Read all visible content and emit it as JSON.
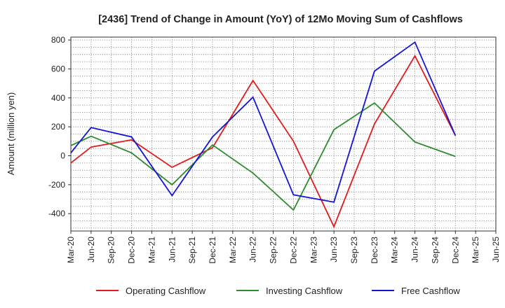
{
  "chart_data": {
    "type": "line",
    "title": "[2436]  Trend of Change in Amount (YoY) of 12Mo Moving Sum of Cashflows",
    "xlabel": "",
    "ylabel": "Amount (million yen)",
    "ylim": [
      -520,
      820
    ],
    "yticks": [
      -400,
      -200,
      0,
      200,
      400,
      600,
      800
    ],
    "ytick_labels": [
      "-400",
      "-200",
      "0",
      "200",
      "400",
      "600",
      "800"
    ],
    "categories": [
      "Mar-20",
      "Jun-20",
      "Sep-20",
      "Dec-20",
      "Mar-21",
      "Jun-21",
      "Sep-21",
      "Dec-21",
      "Mar-22",
      "Jun-22",
      "Sep-22",
      "Dec-22",
      "Mar-23",
      "Jun-23",
      "Sep-23",
      "Dec-23",
      "Mar-24",
      "Jun-24",
      "Sep-24",
      "Dec-24",
      "Mar-25",
      "Jun-25"
    ],
    "grid": true,
    "legend_position": "bottom",
    "series": [
      {
        "name": "Operating Cashflow",
        "color": "#e31a1c",
        "values": [
          -50,
          60,
          null,
          110,
          null,
          -80,
          null,
          55,
          null,
          520,
          null,
          100,
          null,
          -490,
          null,
          220,
          null,
          690,
          null,
          140,
          null,
          null
        ]
      },
      {
        "name": "Investing Cashflow",
        "color": "#2e8b2e",
        "values": [
          70,
          135,
          null,
          20,
          null,
          -200,
          null,
          75,
          null,
          -120,
          null,
          -375,
          null,
          180,
          null,
          365,
          null,
          95,
          null,
          -5,
          null,
          null
        ]
      },
      {
        "name": "Free Cashflow",
        "color": "#1515d6",
        "values": [
          20,
          195,
          null,
          130,
          null,
          -275,
          null,
          130,
          null,
          405,
          null,
          -270,
          null,
          -320,
          null,
          585,
          null,
          785,
          null,
          140,
          null,
          null
        ]
      }
    ]
  }
}
